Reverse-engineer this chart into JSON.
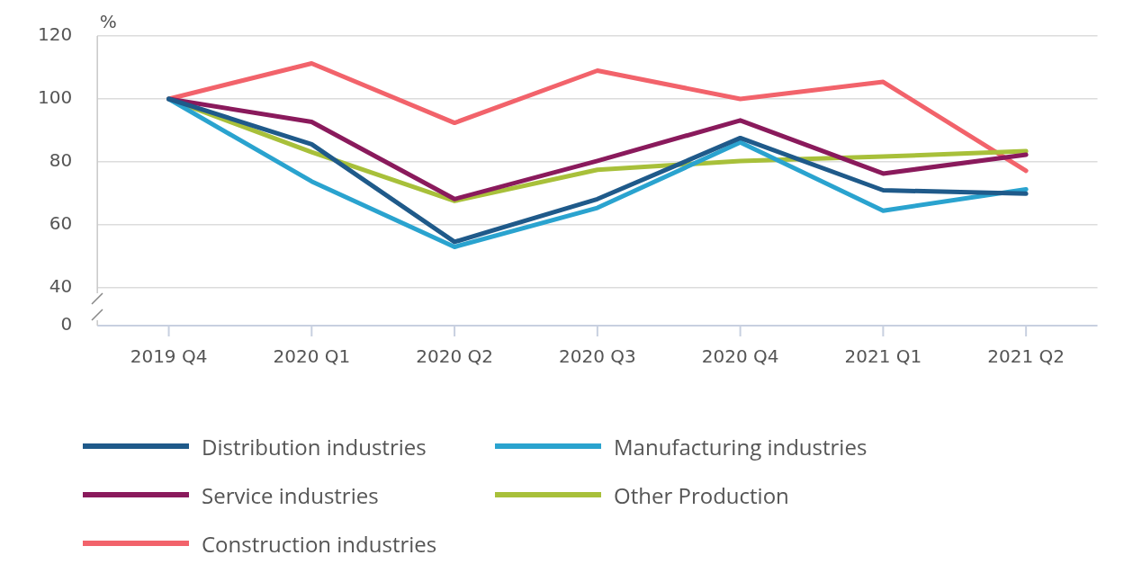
{
  "chart_data": {
    "type": "line",
    "ylabel": "%",
    "categories": [
      "2019 Q4",
      "2020 Q1",
      "2020 Q2",
      "2020 Q3",
      "2020 Q4",
      "2021 Q1",
      "2021 Q2"
    ],
    "series": [
      {
        "name": "Distribution industries",
        "color": "#1f5a8a",
        "values": [
          100,
          85.6,
          54.6,
          68.2,
          87.6,
          71,
          69.9
        ]
      },
      {
        "name": "Manufacturing industries",
        "color": "#2aa3cf",
        "values": [
          100,
          73.8,
          53,
          65.4,
          86.2,
          64.5,
          71.3
        ]
      },
      {
        "name": "Service industries",
        "color": "#8a1a5c",
        "values": [
          100,
          92.7,
          68.2,
          80.3,
          93.2,
          76.3,
          82.3
        ]
      },
      {
        "name": "Other Production",
        "color": "#a8c03a",
        "values": [
          100,
          83.1,
          67.6,
          77.5,
          80.3,
          81.7,
          83.4
        ]
      },
      {
        "name": "Construction industries",
        "color": "#f2636b",
        "values": [
          100,
          111.3,
          92.4,
          109,
          100,
          105.4,
          77.2
        ]
      }
    ],
    "ylim": [
      40,
      120
    ],
    "yticks": [
      40,
      60,
      80,
      100,
      120
    ],
    "annotations": [
      "0"
    ],
    "grid": "y",
    "legend": "bottom",
    "marker": "none",
    "line_style": "solid"
  }
}
